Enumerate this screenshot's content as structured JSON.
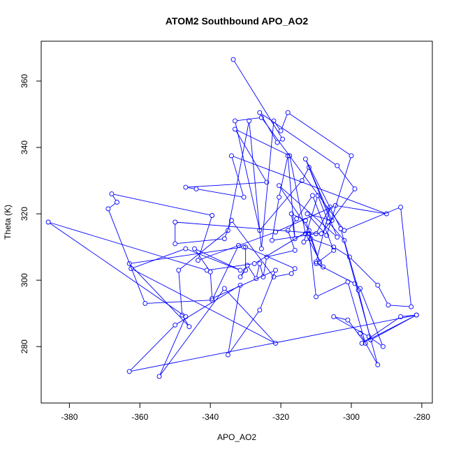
{
  "chart_data": {
    "type": "scatter",
    "title": "ATOM2 Southbound APO_AO2",
    "xlabel": "APO_AO2",
    "ylabel": "Theta (K)",
    "xlim": [
      -388,
      -277
    ],
    "ylim": [
      263,
      372
    ],
    "x_ticks": [
      -380,
      -360,
      -340,
      -320,
      -300,
      -280
    ],
    "y_ticks": [
      280,
      300,
      320,
      340,
      360
    ],
    "grid": false,
    "legend": "none",
    "colors": {
      "series": "#0000ff"
    },
    "marker": "open-circle",
    "connect_points": true,
    "series": [
      {
        "points": [
          [
            -333.5,
            366.5
          ],
          [
            -319.5,
            342.5
          ],
          [
            -321.0,
            341.5
          ],
          [
            -326.0,
            350.5
          ],
          [
            -304.0,
            334.5
          ],
          [
            -299.0,
            327.5
          ],
          [
            -308.5,
            314.0
          ],
          [
            -350.0,
            317.5
          ],
          [
            -350.0,
            311.0
          ],
          [
            -336.0,
            312.5
          ],
          [
            -334.0,
            318.0
          ],
          [
            -322.0,
            301.0
          ],
          [
            -317.0,
            302.0
          ],
          [
            -316.0,
            303.5
          ],
          [
            -330.0,
            310.0
          ],
          [
            -330.0,
            303.0
          ],
          [
            -331.5,
            301.0
          ],
          [
            -329.5,
            304.5
          ],
          [
            -327.0,
            300.5
          ],
          [
            -326.0,
            305.0
          ],
          [
            -325.0,
            301.0
          ],
          [
            -324.0,
            307.0
          ],
          [
            -316.0,
            309.0
          ],
          [
            -318.0,
            315.0
          ],
          [
            -315.5,
            318.5
          ],
          [
            -311.0,
            325.5
          ],
          [
            -305.0,
            309.0
          ],
          [
            -310.0,
            305.0
          ],
          [
            -299.0,
            299.0
          ],
          [
            -297.5,
            297.5
          ],
          [
            -291.0,
            280.0
          ],
          [
            -295.0,
            283.0
          ],
          [
            -305.0,
            289.0
          ],
          [
            -301.0,
            288.0
          ],
          [
            -296.0,
            281.0
          ],
          [
            -301.0,
            299.5
          ],
          [
            -310.0,
            295.0
          ],
          [
            -312.0,
            314.0
          ],
          [
            -309.0,
            305.5
          ],
          [
            -313.0,
            318.0
          ],
          [
            -317.0,
            320.0
          ],
          [
            -316.0,
            312.5
          ],
          [
            -318.0,
            337.5
          ],
          [
            -320.5,
            325.0
          ],
          [
            -322.5,
            312.0
          ],
          [
            -310.0,
            314.0
          ],
          [
            -306.0,
            322.0
          ],
          [
            -310.0,
            305.5
          ],
          [
            -308.0,
            304.0
          ],
          [
            -313.0,
            314.0
          ],
          [
            -317.5,
            337.5
          ],
          [
            -333.0,
            345.5
          ],
          [
            -324.0,
            329.5
          ],
          [
            -347.0,
            328.0
          ],
          [
            -344.0,
            327.5
          ],
          [
            -330.5,
            325.0
          ],
          [
            -334.0,
            337.5
          ],
          [
            -290.0,
            320.0
          ],
          [
            -304.5,
            322.5
          ],
          [
            -321.5,
            314.5
          ],
          [
            -343.5,
            306.0
          ],
          [
            -339.5,
            319.5
          ],
          [
            -368.0,
            326.0
          ],
          [
            -366.5,
            323.5
          ],
          [
            -369.0,
            321.5
          ],
          [
            -358.5,
            293.0
          ],
          [
            -339.5,
            294.0
          ],
          [
            -332.0,
            310.5
          ],
          [
            -330.5,
            310.0
          ],
          [
            -363.0,
            305.0
          ],
          [
            -346.0,
            286.0
          ],
          [
            -348.0,
            289.5
          ],
          [
            -349.0,
            303.0
          ],
          [
            -335.0,
            315.0
          ],
          [
            -329.0,
            348.0
          ],
          [
            -325.5,
            309.5
          ],
          [
            -322.0,
            348.0
          ],
          [
            -320.0,
            345.0
          ],
          [
            -318.0,
            350.5
          ],
          [
            -300.0,
            337.5
          ],
          [
            -307.0,
            313.5
          ],
          [
            -312.5,
            320.0
          ],
          [
            -305.5,
            318.0
          ],
          [
            -312.0,
            334.0
          ],
          [
            -314.0,
            330.0
          ],
          [
            -326.0,
            315.0
          ],
          [
            -333.0,
            348.0
          ],
          [
            -325.5,
            349.0
          ],
          [
            -302.0,
            315.0
          ],
          [
            -286.0,
            322.0
          ],
          [
            -283.0,
            292.0
          ],
          [
            -289.5,
            292.5
          ],
          [
            -292.5,
            298.5
          ],
          [
            -300.5,
            307.0
          ],
          [
            -305.0,
            310.0
          ],
          [
            -311.5,
            312.5
          ],
          [
            -313.5,
            311.5
          ],
          [
            -309.5,
            325.5
          ],
          [
            -306.5,
            317.5
          ],
          [
            -302.0,
            312.0
          ],
          [
            -298.0,
            297.0
          ],
          [
            -294.5,
            282.0
          ],
          [
            -281.5,
            289.5
          ],
          [
            -297.0,
            281.0
          ],
          [
            -286.0,
            289.0
          ],
          [
            -281.5,
            289.5
          ],
          [
            -363.0,
            272.5
          ],
          [
            -350.0,
            286.5
          ],
          [
            -331.5,
            298.5
          ],
          [
            -335.0,
            277.5
          ],
          [
            -326.0,
            291.0
          ],
          [
            -321.5,
            303.0
          ],
          [
            -339.5,
            294.5
          ],
          [
            -340.0,
            302.5
          ],
          [
            -344.5,
            309.5
          ],
          [
            -331.5,
            303.0
          ],
          [
            -347.0,
            309.5
          ],
          [
            -362.5,
            303.5
          ],
          [
            -321.5,
            281.0
          ],
          [
            -336.0,
            297.5
          ],
          [
            -354.5,
            271.0
          ],
          [
            -347.0,
            289.0
          ],
          [
            -386.0,
            317.5
          ],
          [
            -341.0,
            303.0
          ],
          [
            -327.5,
            305.0
          ],
          [
            -312.0,
            315.0
          ],
          [
            -320.5,
            328.5
          ],
          [
            -304.0,
            313.0
          ],
          [
            -313.0,
            336.5
          ],
          [
            -303.0,
            315.5
          ],
          [
            -292.5,
            274.5
          ],
          [
            -297.5,
            284.0
          ]
        ]
      }
    ]
  }
}
